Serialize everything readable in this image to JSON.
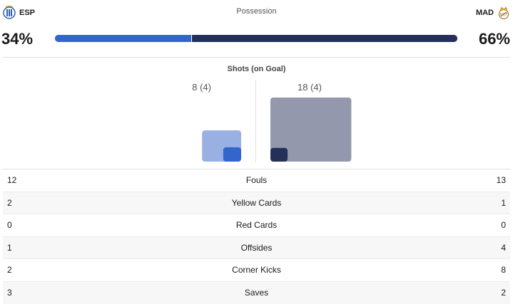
{
  "home": {
    "abbr": "ESP",
    "possession": "34%",
    "possession_value": 34,
    "crest_icon": "espanyol-crest-icon"
  },
  "away": {
    "abbr": "MAD",
    "possession": "66%",
    "possession_value": 66,
    "crest_icon": "real-madrid-crest-icon"
  },
  "possession_label": "Possession",
  "colors": {
    "home_primary": "#3366cc",
    "home_light": "#98b1e2",
    "away_primary": "#25305a",
    "away_light": "#9398ad"
  },
  "shots": {
    "label": "Shots (on Goal)",
    "home_text": "8 (4)",
    "away_text": "18 (4)",
    "home_total": 8,
    "home_on_goal": 4,
    "away_total": 18,
    "away_on_goal": 4
  },
  "stats": [
    {
      "label": "Fouls",
      "home": "12",
      "away": "13"
    },
    {
      "label": "Yellow Cards",
      "home": "2",
      "away": "1"
    },
    {
      "label": "Red Cards",
      "home": "0",
      "away": "0"
    },
    {
      "label": "Offsides",
      "home": "1",
      "away": "4"
    },
    {
      "label": "Corner Kicks",
      "home": "2",
      "away": "8"
    },
    {
      "label": "Saves",
      "home": "3",
      "away": "2"
    }
  ]
}
